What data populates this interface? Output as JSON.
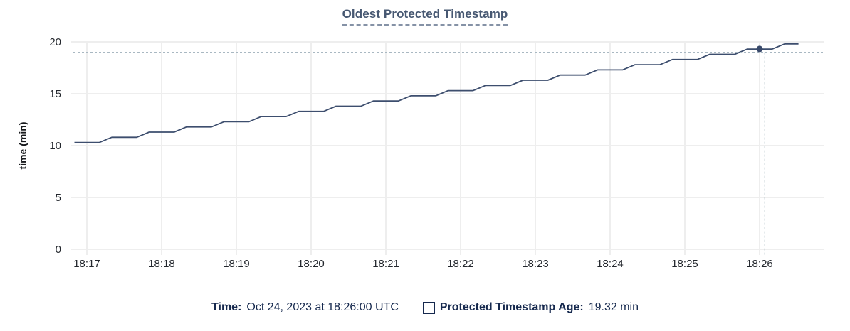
{
  "title": "Oldest Protected Timestamp",
  "footer": {
    "time_label": "Time:",
    "time_value": "Oct 24, 2023 at 18:26:00 UTC",
    "age_label": "Protected Timestamp Age:",
    "age_value": "19.32 min"
  },
  "colors": {
    "title": "#475872",
    "line": "#3d4e6e",
    "crosshair": "#a9b8c2",
    "grid": "#eeeeee",
    "footer_text": "#16294e"
  },
  "chart_data": {
    "type": "line",
    "title": "Oldest Protected Timestamp",
    "xlabel": "",
    "ylabel": "time (min)",
    "ylim": [
      0,
      20
    ],
    "y_ticks": [
      0,
      5,
      10,
      15,
      20
    ],
    "x_ticks": [
      "18:17",
      "18:18",
      "18:19",
      "18:20",
      "18:21",
      "18:22",
      "18:23",
      "18:24",
      "18:25",
      "18:26"
    ],
    "x_unit": "minutes after 18:17 UTC",
    "grid": true,
    "legend_position": "bottom",
    "series": [
      {
        "name": "Protected Timestamp Age",
        "points": [
          [
            -0.167,
            10.3
          ],
          [
            0.167,
            10.3
          ],
          [
            0.333,
            10.8
          ],
          [
            0.667,
            10.8
          ],
          [
            0.833,
            11.3
          ],
          [
            1.167,
            11.3
          ],
          [
            1.333,
            11.8
          ],
          [
            1.667,
            11.8
          ],
          [
            1.833,
            12.3
          ],
          [
            2.167,
            12.3
          ],
          [
            2.333,
            12.8
          ],
          [
            2.667,
            12.8
          ],
          [
            2.833,
            13.3
          ],
          [
            3.167,
            13.3
          ],
          [
            3.333,
            13.8
          ],
          [
            3.667,
            13.8
          ],
          [
            3.833,
            14.3
          ],
          [
            4.167,
            14.3
          ],
          [
            4.333,
            14.8
          ],
          [
            4.667,
            14.8
          ],
          [
            4.833,
            15.3
          ],
          [
            5.167,
            15.3
          ],
          [
            5.333,
            15.8
          ],
          [
            5.667,
            15.8
          ],
          [
            5.833,
            16.3
          ],
          [
            6.167,
            16.3
          ],
          [
            6.333,
            16.8
          ],
          [
            6.667,
            16.8
          ],
          [
            6.833,
            17.3
          ],
          [
            7.167,
            17.3
          ],
          [
            7.333,
            17.8
          ],
          [
            7.667,
            17.8
          ],
          [
            7.833,
            18.3
          ],
          [
            8.167,
            18.3
          ],
          [
            8.333,
            18.8
          ],
          [
            8.667,
            18.8
          ],
          [
            8.833,
            19.3
          ],
          [
            9.167,
            19.3
          ],
          [
            9.333,
            19.8
          ],
          [
            9.52,
            19.8
          ]
        ]
      }
    ],
    "crosshair": {
      "x_minutes": 9.07,
      "y_value": 19.0,
      "dot_x_minutes": 9.0,
      "dot_y_value": 19.32,
      "hover_time": "18:26:00",
      "hover_value_min": 19.32
    }
  }
}
